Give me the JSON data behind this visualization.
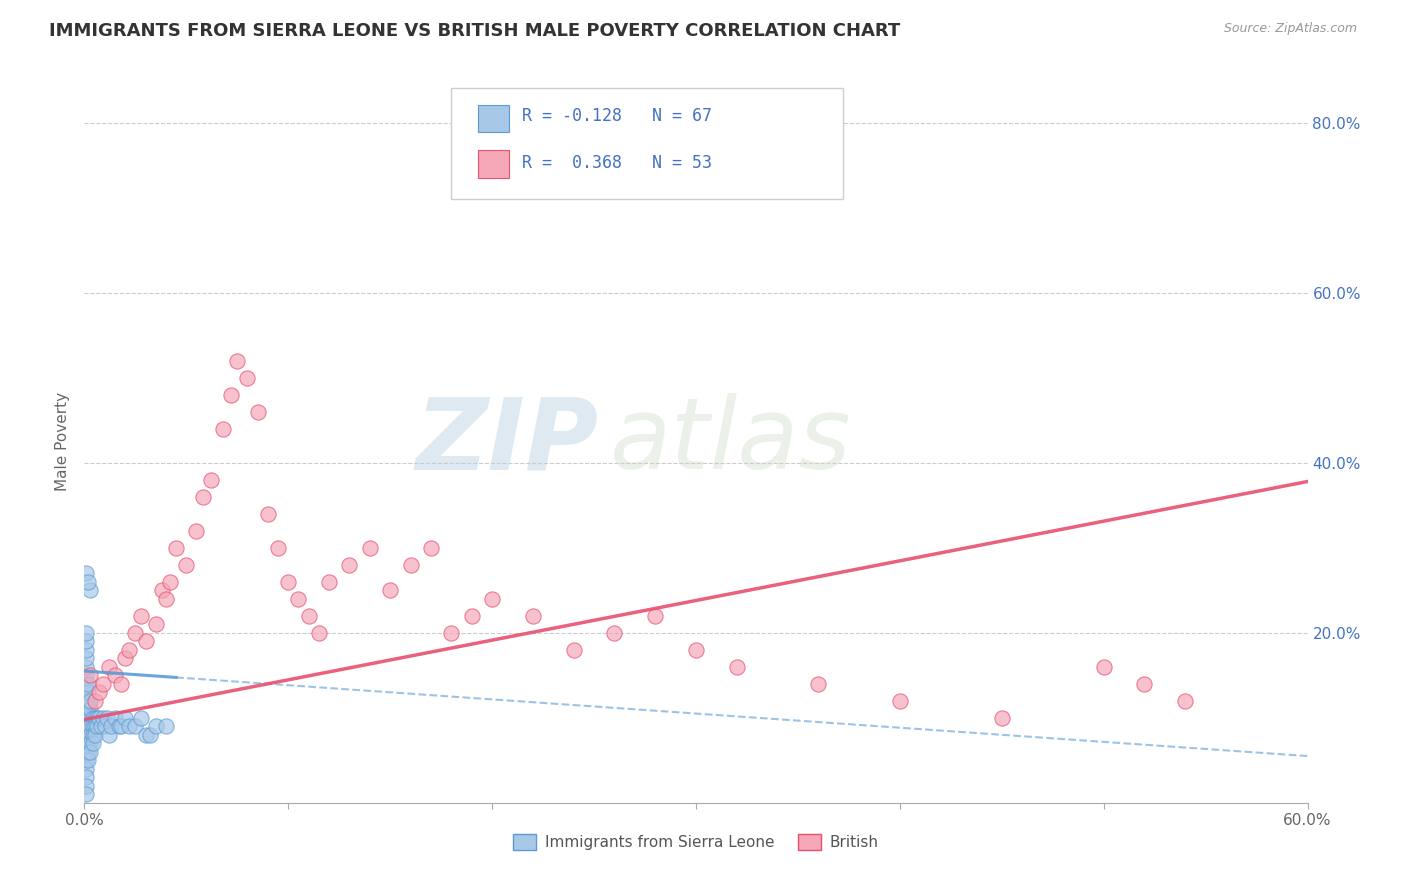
{
  "title": "IMMIGRANTS FROM SIERRA LEONE VS BRITISH MALE POVERTY CORRELATION CHART",
  "source": "Source: ZipAtlas.com",
  "ylabel": "Male Poverty",
  "xlim": [
    0.0,
    0.6
  ],
  "ylim": [
    0.0,
    0.85
  ],
  "ytick_labels_right": [
    "",
    "20.0%",
    "40.0%",
    "60.0%",
    "80.0%"
  ],
  "ytick_positions_right": [
    0.0,
    0.2,
    0.4,
    0.6,
    0.8
  ],
  "legend_label1": "Immigrants from Sierra Leone",
  "legend_label2": "British",
  "r1": -0.128,
  "n1": 67,
  "r2": 0.368,
  "n2": 53,
  "color1": "#a8c8e8",
  "color2": "#f4a8b8",
  "line_color1": "#5b9bd5",
  "line_color2": "#e85070",
  "watermark_zip": "ZIP",
  "watermark_atlas": "atlas",
  "title_color": "#333333",
  "blue_text_color": "#4472c4",
  "scatter1_x": [
    0.001,
    0.001,
    0.001,
    0.001,
    0.001,
    0.001,
    0.001,
    0.001,
    0.001,
    0.001,
    0.001,
    0.001,
    0.001,
    0.001,
    0.001,
    0.001,
    0.001,
    0.001,
    0.001,
    0.001,
    0.002,
    0.002,
    0.002,
    0.002,
    0.002,
    0.002,
    0.002,
    0.002,
    0.002,
    0.002,
    0.003,
    0.003,
    0.003,
    0.003,
    0.003,
    0.003,
    0.003,
    0.004,
    0.004,
    0.004,
    0.004,
    0.005,
    0.005,
    0.005,
    0.006,
    0.006,
    0.007,
    0.008,
    0.009,
    0.01,
    0.011,
    0.012,
    0.013,
    0.015,
    0.017,
    0.018,
    0.02,
    0.022,
    0.025,
    0.028,
    0.03,
    0.032,
    0.035,
    0.04,
    0.003,
    0.001,
    0.002
  ],
  "scatter1_y": [
    0.1,
    0.11,
    0.12,
    0.13,
    0.14,
    0.15,
    0.07,
    0.08,
    0.09,
    0.05,
    0.06,
    0.16,
    0.17,
    0.18,
    0.19,
    0.04,
    0.03,
    0.02,
    0.01,
    0.2,
    0.1,
    0.11,
    0.12,
    0.08,
    0.09,
    0.07,
    0.13,
    0.14,
    0.06,
    0.05,
    0.1,
    0.11,
    0.09,
    0.08,
    0.07,
    0.12,
    0.06,
    0.1,
    0.09,
    0.08,
    0.07,
    0.1,
    0.09,
    0.08,
    0.1,
    0.09,
    0.1,
    0.09,
    0.1,
    0.09,
    0.1,
    0.08,
    0.09,
    0.1,
    0.09,
    0.09,
    0.1,
    0.09,
    0.09,
    0.1,
    0.08,
    0.08,
    0.09,
    0.09,
    0.25,
    0.27,
    0.26
  ],
  "scatter2_x": [
    0.003,
    0.005,
    0.007,
    0.009,
    0.012,
    0.015,
    0.018,
    0.02,
    0.022,
    0.025,
    0.028,
    0.03,
    0.035,
    0.038,
    0.04,
    0.042,
    0.045,
    0.05,
    0.055,
    0.058,
    0.062,
    0.068,
    0.072,
    0.075,
    0.08,
    0.085,
    0.09,
    0.095,
    0.1,
    0.105,
    0.11,
    0.115,
    0.12,
    0.13,
    0.14,
    0.15,
    0.16,
    0.17,
    0.18,
    0.19,
    0.2,
    0.22,
    0.24,
    0.26,
    0.28,
    0.3,
    0.32,
    0.36,
    0.4,
    0.45,
    0.5,
    0.52,
    0.54
  ],
  "scatter2_y": [
    0.15,
    0.12,
    0.13,
    0.14,
    0.16,
    0.15,
    0.14,
    0.17,
    0.18,
    0.2,
    0.22,
    0.19,
    0.21,
    0.25,
    0.24,
    0.26,
    0.3,
    0.28,
    0.32,
    0.36,
    0.38,
    0.44,
    0.48,
    0.52,
    0.5,
    0.46,
    0.34,
    0.3,
    0.26,
    0.24,
    0.22,
    0.2,
    0.26,
    0.28,
    0.3,
    0.25,
    0.28,
    0.3,
    0.2,
    0.22,
    0.24,
    0.22,
    0.18,
    0.2,
    0.22,
    0.18,
    0.16,
    0.14,
    0.12,
    0.1,
    0.16,
    0.14,
    0.12
  ],
  "trendline1_x": [
    0.0,
    0.6
  ],
  "trendline1_y": [
    0.155,
    0.055
  ],
  "trendline2_x": [
    0.0,
    0.6
  ],
  "trendline2_y": [
    0.098,
    0.378
  ]
}
